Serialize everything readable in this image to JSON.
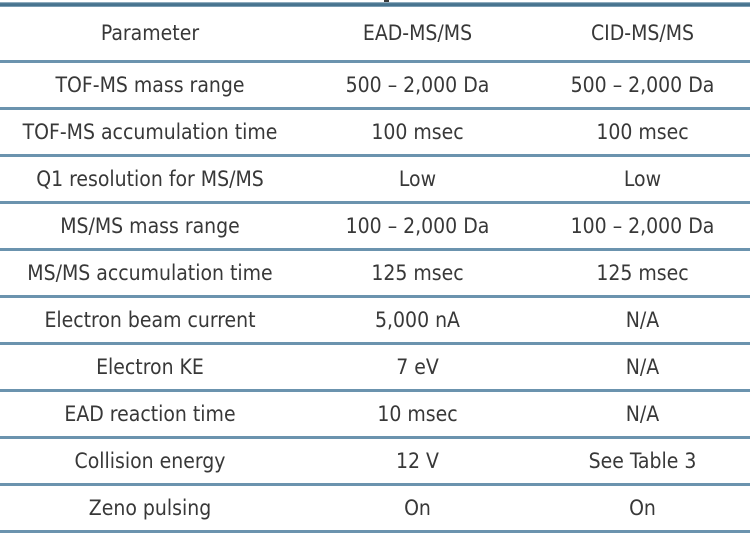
{
  "table": {
    "columns": [
      "Parameter",
      "EAD-MS/MS",
      "CID-MS/MS"
    ],
    "rows": [
      {
        "parameter": "TOF-MS mass range",
        "ead": "500 – 2,000 Da",
        "cid": "500 – 2,000 Da"
      },
      {
        "parameter": "TOF-MS accumulation time",
        "ead": "100 msec",
        "cid": "100 msec"
      },
      {
        "parameter": "Q1 resolution for MS/MS",
        "ead": "Low",
        "cid": "Low"
      },
      {
        "parameter": "MS/MS mass range",
        "ead": "100 – 2,000 Da",
        "cid": "100 – 2,000 Da"
      },
      {
        "parameter": "MS/MS accumulation time",
        "ead": "125 msec",
        "cid": "125 msec"
      },
      {
        "parameter": "Electron beam current",
        "ead": "5,000 nA",
        "cid": "N/A"
      },
      {
        "parameter": "Electron KE",
        "ead": "7 eV",
        "cid": "N/A"
      },
      {
        "parameter": "EAD reaction time",
        "ead": "10 msec",
        "cid": "N/A"
      },
      {
        "parameter": "Collision energy",
        "ead": "12 V",
        "cid": "See Table 3"
      },
      {
        "parameter": "Zeno pulsing",
        "ead": "On",
        "cid": "On"
      }
    ]
  },
  "colors": {
    "separator": "#6b93ae",
    "top_bar": "#47748f",
    "text": "#383838",
    "background": "#ffffff"
  }
}
